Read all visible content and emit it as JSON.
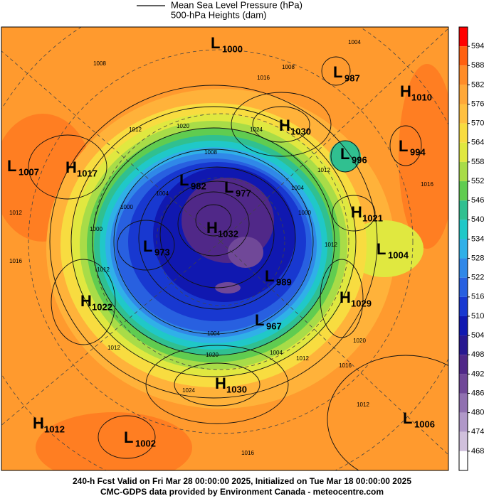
{
  "header": {
    "legend_items": [
      {
        "label": "Mean Sea Level Pressure (hPa)"
      },
      {
        "label": "500-hPa Heights (dam)"
      }
    ]
  },
  "map": {
    "centers": [
      {
        "type": "L",
        "value": 1000
      },
      {
        "type": "L",
        "value": 987
      },
      {
        "type": "H",
        "value": 1010
      },
      {
        "type": "H",
        "value": 1030
      },
      {
        "type": "L",
        "value": 996
      },
      {
        "type": "L",
        "value": 994
      },
      {
        "type": "L",
        "value": 1007
      },
      {
        "type": "H",
        "value": 1017
      },
      {
        "type": "L",
        "value": 982
      },
      {
        "type": "L",
        "value": 977
      },
      {
        "type": "H",
        "value": 1021
      },
      {
        "type": "H",
        "value": 1032
      },
      {
        "type": "L",
        "value": 973
      },
      {
        "type": "L",
        "value": 1004
      },
      {
        "type": "L",
        "value": 989
      },
      {
        "type": "H",
        "value": 1022
      },
      {
        "type": "H",
        "value": 1029
      },
      {
        "type": "L",
        "value": 967
      },
      {
        "type": "H",
        "value": 1030
      },
      {
        "type": "H",
        "value": 1012
      },
      {
        "type": "L",
        "value": 1002
      },
      {
        "type": "L",
        "value": 1006
      }
    ],
    "contour_labels": [
      1008,
      1016,
      1008,
      1004,
      1020,
      1024,
      1012,
      1008,
      1004,
      1000,
      1000,
      1012,
      1016,
      1012,
      1012,
      1004,
      1020,
      1004,
      1012,
      1016,
      1020,
      1012,
      1000,
      1004,
      1012,
      1024,
      1016,
      1012,
      1016
    ]
  },
  "colorbar": {
    "ticks": [
      594,
      588,
      582,
      576,
      570,
      564,
      558,
      552,
      546,
      540,
      534,
      528,
      522,
      516,
      510,
      504,
      498,
      492,
      486,
      480,
      474,
      468
    ],
    "colors": [
      "#ff0000",
      "#ff6010",
      "#ff8c28",
      "#ffa838",
      "#ffc040",
      "#f8dc40",
      "#e0e840",
      "#a8dc48",
      "#60cc50",
      "#30c090",
      "#20c8c8",
      "#30b0e8",
      "#3088e8",
      "#2860e0",
      "#1838d0",
      "#1018b0",
      "#281890",
      "#502888",
      "#704898",
      "#9070b0",
      "#b098c8",
      "#d0c0dc",
      "#ffffff"
    ]
  },
  "footer": {
    "lines": [
      "240-h Fcst Valid on Fri Mar 28 00:00:00 2025, Initialized on Tue Mar 18 00:00:00 2025",
      "CMC-GDPS data provided by Environment Canada - meteocentre.com"
    ]
  }
}
